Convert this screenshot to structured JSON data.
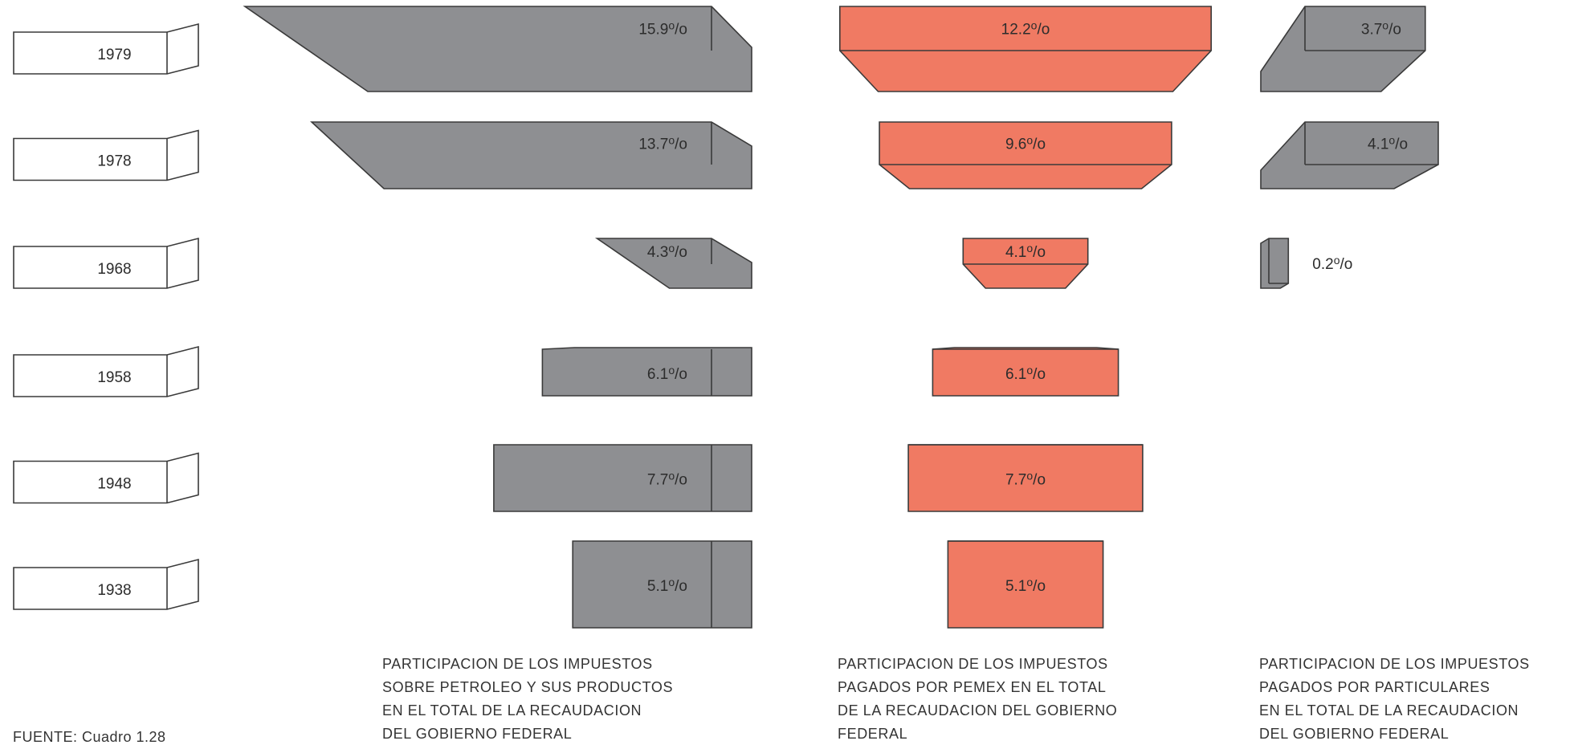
{
  "chart_data": {
    "type": "bar",
    "categories": [
      "1979",
      "1978",
      "1968",
      "1958",
      "1948",
      "1938"
    ],
    "series": [
      {
        "key": "petroleo",
        "values": [
          15.9,
          13.7,
          4.3,
          6.1,
          7.7,
          5.1
        ]
      },
      {
        "key": "pemex",
        "values": [
          12.2,
          9.6,
          4.1,
          6.1,
          7.7,
          5.1
        ]
      },
      {
        "key": "particulares",
        "values": [
          3.7,
          4.1,
          0.2,
          null,
          null,
          null
        ]
      }
    ],
    "value_suffix": "o/o",
    "colors": {
      "gray": "#8e8f92",
      "gray_dark": "#7d7e81",
      "salmon": "#f07a63",
      "salmon_dark": "#e66a53",
      "outline": "#3a3a3a"
    },
    "captions": [
      [
        "PARTICIPACION DE LOS IMPUESTOS",
        "SOBRE PETROLEO Y SUS PRODUCTOS",
        "EN EL TOTAL DE LA RECAUDACION",
        "DEL GOBIERNO FEDERAL"
      ],
      [
        "PARTICIPACION DE LOS IMPUESTOS",
        "PAGADOS POR PEMEX EN EL TOTAL",
        "DE LA RECAUDACION DEL GOBIERNO",
        "FEDERAL"
      ],
      [
        "PARTICIPACION DE LOS IMPUESTOS",
        "PAGADOS POR PARTICULARES",
        "EN EL TOTAL DE LA RECAUDACION",
        "DEL GOBIERNO FEDERAL"
      ]
    ],
    "source": "FUENTE: Cuadro  1.28"
  }
}
